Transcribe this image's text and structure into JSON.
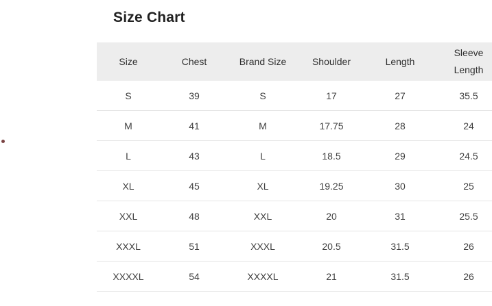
{
  "page": {
    "title": "Size Chart"
  },
  "decorations": {
    "stray_dot_color": "#7a4343"
  },
  "colors": {
    "header_bg": "#ededed",
    "row_divider": "#e4e4e4",
    "title_text": "#212121",
    "body_text": "#3f3f3f"
  },
  "size_chart_table": {
    "columns": [
      "Size",
      "Chest",
      "Brand Size",
      "Shoulder",
      "Length",
      "Sleeve Length"
    ],
    "rows": [
      [
        "S",
        "39",
        "S",
        "17",
        "27",
        "35.5"
      ],
      [
        "M",
        "41",
        "M",
        "17.75",
        "28",
        "24"
      ],
      [
        "L",
        "43",
        "L",
        "18.5",
        "29",
        "24.5"
      ],
      [
        "XL",
        "45",
        "XL",
        "19.25",
        "30",
        "25"
      ],
      [
        "XXL",
        "48",
        "XXL",
        "20",
        "31",
        "25.5"
      ],
      [
        "XXXL",
        "51",
        "XXXL",
        "20.5",
        "31.5",
        "26"
      ],
      [
        "XXXXL",
        "54",
        "XXXXL",
        "21",
        "31.5",
        "26"
      ]
    ]
  }
}
